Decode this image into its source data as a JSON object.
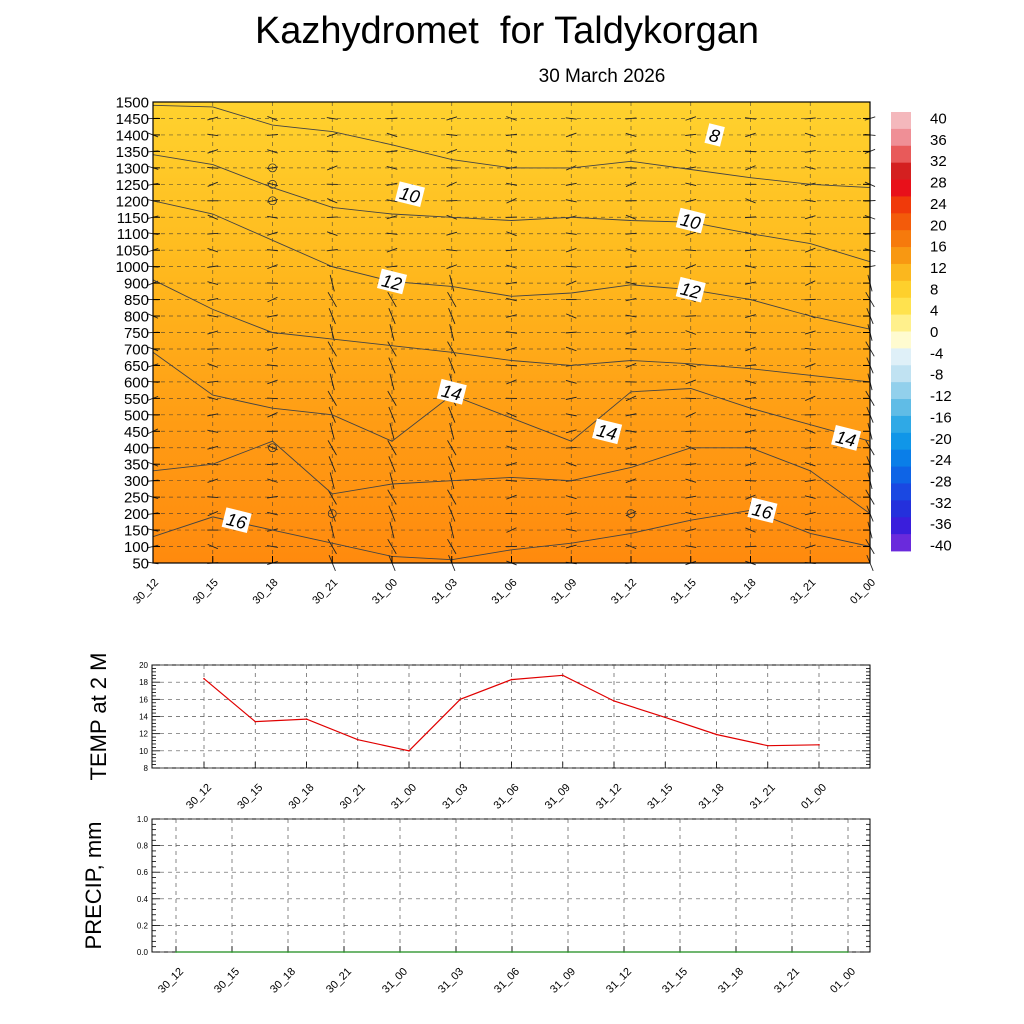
{
  "header": {
    "title": "Kazhydromet  for Taldykorgan",
    "date": "30 March 2026"
  },
  "chart_data": [
    {
      "type": "heatmap",
      "title": "Kazhydromet  for Taldykorgan",
      "subtitle": "30 March 2026",
      "x_labels": [
        "30_12",
        "30_15",
        "30_18",
        "30_21",
        "31_00",
        "31_03",
        "31_06",
        "31_09",
        "31_12",
        "31_15",
        "31_18",
        "31_21",
        "01_00"
      ],
      "y_levels": [
        1500,
        1450,
        1400,
        1350,
        1300,
        1250,
        1200,
        1150,
        1100,
        1050,
        1000,
        900,
        850,
        800,
        750,
        700,
        650,
        600,
        550,
        500,
        450,
        400,
        350,
        300,
        250,
        200,
        150,
        100,
        50
      ],
      "ylim": [
        50,
        1500
      ],
      "contour_labels": [
        {
          "text": "8",
          "time_index": 9.4,
          "level": 1400
        },
        {
          "text": "10",
          "time_index": 4.3,
          "level": 1220
        },
        {
          "text": "10",
          "time_index": 9.0,
          "level": 1140
        },
        {
          "text": "12",
          "time_index": 4.0,
          "level": 910
        },
        {
          "text": "12",
          "time_index": 9.0,
          "level": 880
        },
        {
          "text": "14",
          "time_index": 5.0,
          "level": 570
        },
        {
          "text": "14",
          "time_index": 7.6,
          "level": 450
        },
        {
          "text": "14",
          "time_index": 11.6,
          "level": 430
        },
        {
          "text": "16",
          "time_index": 1.4,
          "level": 180
        },
        {
          "text": "16",
          "time_index": 10.2,
          "level": 210
        }
      ],
      "colorbar": {
        "ticks": [
          "40",
          "36",
          "32",
          "28",
          "24",
          "20",
          "16",
          "12",
          "8",
          "4",
          "0",
          "-4",
          "-8",
          "-12",
          "-16",
          "-20",
          "-24",
          "-28",
          "-32",
          "-36",
          "-40"
        ],
        "colors": [
          "#f4b8bc",
          "#ef8f96",
          "#e85a5a",
          "#d42020",
          "#e8101a",
          "#f03a0a",
          "#f35b0a",
          "#f67a0c",
          "#f89812",
          "#fbb71e",
          "#fed02c",
          "#ffe24e",
          "#fff08c",
          "#fffbd0",
          "#dff0f8",
          "#c0e2f2",
          "#92d0ec",
          "#60bce6",
          "#2fa9e6",
          "#1096e8",
          "#0a7ee8",
          "#0e64e6",
          "#1a48e2",
          "#2430dc",
          "#3a1edc",
          "#6a2adc"
        ]
      }
    },
    {
      "type": "line",
      "ylabel": "TEMP at 2 M",
      "categories": [
        "30_12",
        "30_15",
        "30_18",
        "30_21",
        "31_00",
        "31_03",
        "31_06",
        "31_09",
        "31_12",
        "31_15",
        "31_18",
        "31_21",
        "01_00"
      ],
      "series": [
        {
          "name": "TEMP at 2 M",
          "color": "#e00000",
          "values": [
            18.4,
            13.4,
            13.7,
            11.3,
            10.0,
            16.0,
            18.3,
            18.8,
            15.8,
            13.9,
            11.9,
            10.6,
            10.7
          ]
        }
      ],
      "ylim": [
        8,
        20
      ],
      "yticks": [
        "8",
        "10",
        "12",
        "14",
        "16",
        "18",
        "20"
      ]
    },
    {
      "type": "line",
      "ylabel": "PRECIP, mm",
      "categories": [
        "30_12",
        "30_15",
        "30_18",
        "30_21",
        "31_00",
        "31_03",
        "31_06",
        "31_09",
        "31_12",
        "31_15",
        "31_18",
        "31_21",
        "01_00"
      ],
      "series": [
        {
          "name": "PRECIP",
          "color": "#1a8a1a",
          "values": [
            0,
            0,
            0,
            0,
            0,
            0,
            0,
            0,
            0,
            0,
            0,
            0,
            0
          ]
        }
      ],
      "ylim": [
        0,
        1.0
      ],
      "yticks": [
        "0.0",
        "0.2",
        "0.4",
        "0.6",
        "0.8",
        "1.0"
      ]
    }
  ]
}
